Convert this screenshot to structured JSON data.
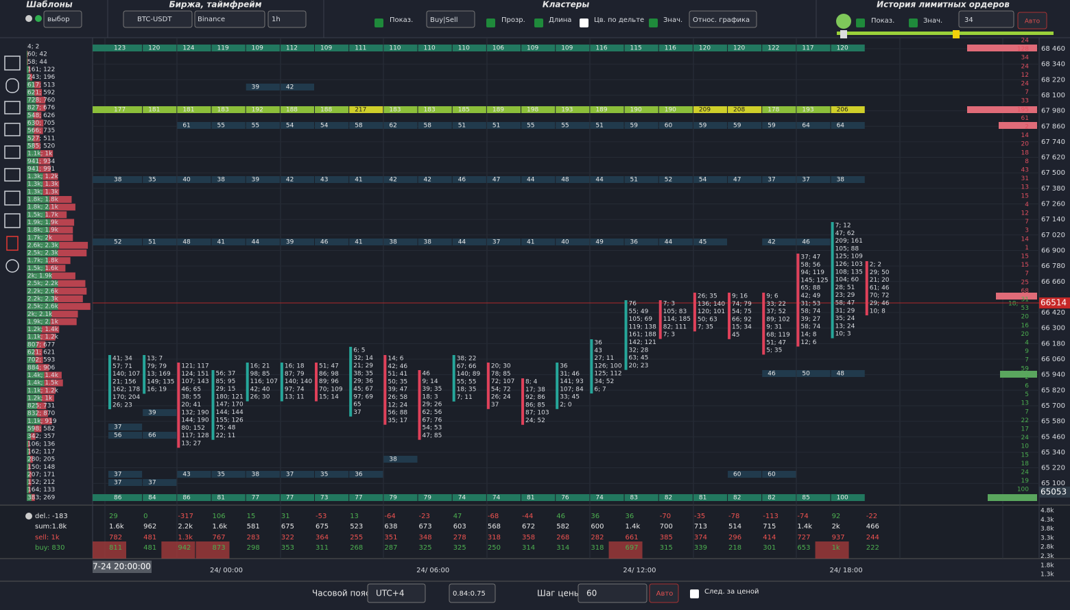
{
  "header": {
    "templates": {
      "title": "Шаблоны",
      "select": "выбор"
    },
    "exchange": {
      "title": "Биржа, таймфрейм",
      "symbol": "BTC-USDT",
      "exchange": "Binance",
      "timeframe": "1h"
    },
    "clusters": {
      "title": "Кластеры",
      "show": "Показ.",
      "mode": "Buy|Sell",
      "transparency": "Прозр.",
      "length": "Длина",
      "delta_color": "Цв. по дельте",
      "values": "Знач.",
      "relative": "Относ. графика"
    },
    "limit_history": {
      "title": "История лимитных ордеров",
      "show": "Показ.",
      "values": "Знач.",
      "threshold": "34",
      "auto": "Авто"
    }
  },
  "left_profile": [
    "4; 2",
    "60; 42",
    "58; 44",
    "161; 122",
    "243; 196",
    "617; 513",
    "621; 592",
    "728; 760",
    "827; 676",
    "548; 626",
    "630; 705",
    "566; 735",
    "527; 511",
    "585; 520",
    "1.1k; 1k",
    "941; 934",
    "941; 991",
    "1.3k; 1.2k",
    "1.3k; 1.3k",
    "1.3k; 1.3k",
    "1.8k; 1.8k",
    "1.8k; 2.1k",
    "1.5k; 1.7k",
    "1.9k; 1.9k",
    "1.8k; 1.9k",
    "1.7k; 2k",
    "2.6k; 2.3k",
    "2.5k; 2.3k",
    "1.7k; 1.8k",
    "1.5k; 1.6k",
    "2k; 1.9k",
    "2.5k; 2.2k",
    "2.2k; 2.6k",
    "2.2k; 2.3k",
    "2.5k; 2.6k",
    "2k; 2.1k",
    "1.9k; 2.1k",
    "1.2k; 1.4k",
    "1.1k; 1.2k",
    "807; 677",
    "621; 621",
    "702; 593",
    "884; 906",
    "1.4k; 1.4k",
    "1.4k; 1.5k",
    "1.1k; 1.2k",
    "1.2k; 1k",
    "825; 731",
    "832; 870",
    "1.1k; 919",
    "598; 582",
    "342; 357",
    "106; 136",
    "162; 117",
    "280; 205",
    "150; 148",
    "207; 171",
    "152; 212",
    "164; 133",
    "383; 269"
  ],
  "levels": [
    {
      "values": [
        123,
        120,
        124,
        119,
        109,
        112,
        109,
        111,
        110,
        110,
        110,
        106,
        109,
        109,
        116,
        115,
        116,
        120,
        120,
        122,
        117,
        120
      ]
    },
    {
      "values": [
        null,
        null,
        null,
        null,
        39,
        42
      ]
    },
    {
      "values": [
        177,
        181,
        181,
        183,
        192,
        188,
        188,
        217,
        183,
        183,
        185,
        189,
        198,
        193,
        189,
        190,
        190,
        209,
        208,
        178,
        193,
        206
      ]
    },
    {
      "values": [
        null,
        null,
        61,
        55,
        55,
        54,
        54,
        58,
        62,
        58,
        51,
        51,
        55,
        55,
        51,
        59,
        60,
        59,
        59,
        59,
        64,
        64
      ]
    },
    {
      "values": [
        38,
        35,
        40,
        38,
        39,
        42,
        43,
        41,
        42,
        42,
        46,
        47,
        44,
        48,
        44,
        51,
        52,
        54,
        47,
        37,
        37,
        38
      ]
    },
    {
      "values": [
        52,
        51,
        48,
        41,
        44,
        39,
        46,
        41,
        38,
        38,
        44,
        37,
        41,
        40,
        49,
        36,
        44,
        45,
        null,
        42,
        46
      ]
    },
    {
      "values": [
        null,
        null,
        null,
        null,
        null,
        null,
        null,
        null,
        null,
        null,
        null,
        null,
        null,
        null,
        null,
        null,
        null,
        null,
        null,
        46,
        50,
        48
      ]
    },
    {
      "values": [
        37,
        null,
        43,
        35,
        38,
        37,
        35,
        36,
        null,
        null,
        null,
        null,
        null,
        null,
        null,
        null,
        null,
        null,
        60,
        60
      ]
    },
    {
      "values": [
        37,
        37
      ]
    },
    {
      "values": [
        86,
        84,
        86,
        81,
        77,
        77,
        73,
        77,
        79,
        79,
        74,
        74,
        81,
        76,
        74,
        83,
        82,
        81,
        82,
        82,
        85,
        100
      ]
    },
    {
      "values": [
        37
      ]
    },
    {
      "values": [
        56,
        66
      ]
    },
    {
      "values": [
        null,
        39
      ]
    },
    {
      "values": [
        null,
        null,
        null,
        null,
        null,
        null,
        null,
        null,
        38
      ]
    }
  ],
  "clusters": [
    [
      "41; 34",
      "57; 71",
      "140; 107",
      "21; 156",
      "162; 178",
      "170; 204",
      "26; 23"
    ],
    [
      "13; 7",
      "79; 79",
      "13; 169",
      "149; 135",
      "16; 19"
    ],
    [
      "121; 117",
      "124; 151",
      "107; 143",
      "46; 65",
      "38; 55",
      "20; 41",
      "132; 190",
      "144; 190",
      "80; 152",
      "117; 128",
      "13; 27"
    ],
    [
      "56; 37",
      "85; 95",
      "29; 15",
      "180; 121",
      "147; 170",
      "144; 144",
      "155; 126",
      "75; 48",
      "22; 11"
    ],
    [
      "16; 21",
      "98; 85",
      "116; 107",
      "42; 40",
      "26; 30"
    ],
    [
      "16; 18",
      "87; 79",
      "140; 140",
      "97; 74",
      "13; 11"
    ],
    [
      "51; 47",
      "86; 98",
      "89; 96",
      "70; 109",
      "15; 14"
    ],
    [
      "6; 5",
      "32; 14",
      "21; 29",
      "38; 35",
      "29; 36",
      "45; 67",
      "97; 69",
      "65",
      "37"
    ],
    [
      "14; 6",
      "42; 46",
      "51; 41",
      "50; 35",
      "39; 47",
      "26; 58",
      "12; 24",
      "56; 88",
      "35; 17"
    ],
    [
      "46",
      "9; 14",
      "39; 35",
      "18; 3",
      "29; 26",
      "62; 56",
      "67; 76",
      "54; 53",
      "47; 85"
    ],
    [
      "38; 22",
      "67; 66",
      "140; 89",
      "55; 55",
      "18; 35",
      "7; 11"
    ],
    [
      "20; 30",
      "78; 85",
      "72; 107",
      "54; 72",
      "26; 24",
      "37"
    ],
    [
      "8; 4",
      "17; 38",
      "92; 86",
      "86; 85",
      "87; 103",
      "24; 52"
    ],
    [
      "36",
      "31; 46",
      "141; 93",
      "107; 84",
      "33; 45",
      "2; 0"
    ],
    [
      "36",
      "43",
      "27; 11",
      "126; 100",
      "125; 112",
      "34; 52",
      "6; 7"
    ],
    [
      "76",
      "55; 49",
      "105; 69",
      "119; 138",
      "161; 188",
      "142; 121",
      "32; 28",
      "63; 45",
      "20; 23"
    ],
    [
      "7; 3",
      "105; 83",
      "114; 185",
      "82; 111",
      "7; 3"
    ],
    [
      "26; 35",
      "136; 140",
      "120; 101",
      "50; 63",
      "7; 35"
    ],
    [
      "9; 16",
      "74; 79",
      "54; 75",
      "66; 92",
      "15; 34",
      "45"
    ],
    [
      "9; 6",
      "33; 22",
      "37; 52",
      "89; 102",
      "9; 31",
      "68; 119",
      "51; 47",
      "5; 35"
    ],
    [
      "37; 47",
      "58; 56",
      "94; 119",
      "145; 125",
      "65; 88",
      "42; 49",
      "31; 53",
      "58; 74",
      "39; 27",
      "58; 74",
      "14; 8",
      "12; 6"
    ],
    [
      "7; 12",
      "47; 62",
      "209; 161",
      "105; 88",
      "125; 109",
      "126; 103",
      "108; 135",
      "104; 60",
      "28; 51",
      "23; 29",
      "58; 47",
      "31; 29",
      "35; 24",
      "13; 24",
      "10; 3"
    ],
    [
      "2; 2",
      "29; 50",
      "21; 20",
      "61; 46",
      "70; 72",
      "29; 46",
      "10; 8"
    ]
  ],
  "price_axis": [
    "68 460",
    "68 340",
    "68 220",
    "68 100",
    "67 980",
    "67 860",
    "67 740",
    "67 620",
    "67 500",
    "67 380",
    "67 260",
    "67 140",
    "67 020",
    "66 900",
    "66 780",
    "66 660",
    "66 420",
    "66 300",
    "66 180",
    "66 060",
    "65 940",
    "65 820",
    "65 700",
    "65 580",
    "65 460",
    "65 340",
    "65 220",
    "65 100"
  ],
  "current_price": "66514",
  "last_price": "65053",
  "limit_orders": [
    "24",
    "128",
    "34",
    "24",
    "12",
    "24",
    "7",
    "33",
    "195",
    "61",
    "2",
    "14",
    "20",
    "18",
    "8",
    "43",
    "31",
    "13",
    "15",
    "4",
    "12",
    "7",
    "3",
    "14",
    "1",
    "15",
    "15",
    "7",
    "25",
    "68",
    "31",
    "53",
    "20",
    "16",
    "20",
    "4",
    "9",
    "7",
    "59",
    "2",
    "6",
    "5",
    "13",
    "7",
    "22",
    "17",
    "24",
    "10",
    "15",
    "18",
    "24",
    "19",
    "100"
  ],
  "stats": {
    "labels": {
      "delta": "del.: -183",
      "sum": "sum:1.8k",
      "sell": "sell: 1k",
      "buy": "buy: 830"
    },
    "delta": [
      "29",
      "0",
      "-317",
      "106",
      "15",
      "31",
      "-53",
      "13",
      "-64",
      "-23",
      "47",
      "-68",
      "-44",
      "46",
      "36",
      "36",
      "-70",
      "-35",
      "-78",
      "-113",
      "-74",
      "92",
      "-22"
    ],
    "sum": [
      "1.6k",
      "962",
      "2.2k",
      "1.6k",
      "581",
      "675",
      "675",
      "523",
      "638",
      "673",
      "603",
      "568",
      "672",
      "582",
      "600",
      "1.4k",
      "700",
      "713",
      "514",
      "715",
      "1.4k",
      "2k",
      "466"
    ],
    "sell": [
      "782",
      "481",
      "1.3k",
      "767",
      "283",
      "322",
      "364",
      "255",
      "351",
      "348",
      "278",
      "318",
      "358",
      "268",
      "282",
      "661",
      "385",
      "374",
      "296",
      "414",
      "727",
      "937",
      "244"
    ],
    "buy": [
      "811",
      "481",
      "942",
      "873",
      "298",
      "353",
      "311",
      "268",
      "287",
      "325",
      "325",
      "250",
      "314",
      "314",
      "318",
      "697",
      "315",
      "339",
      "218",
      "301",
      "653",
      "1k",
      "222"
    ],
    "axis": [
      "4.8k",
      "4.3k",
      "3.8k",
      "3.3k",
      "2.8k",
      "2.3k",
      "1.8k",
      "1.3k"
    ]
  },
  "time_axis": {
    "cursor": "7-24 20:00:00",
    "labels": [
      "24/ 00:00",
      "24/ 06:00",
      "24/ 12:00",
      "24/ 18:00"
    ]
  },
  "footer": {
    "timezone_label": "Часовой пояс:",
    "timezone": "UTC+4",
    "ratio": "0.84:0.75",
    "price_step_label": "Шаг цены:",
    "price_step": "60",
    "auto": "Авто",
    "follow": "След. за ценой"
  }
}
